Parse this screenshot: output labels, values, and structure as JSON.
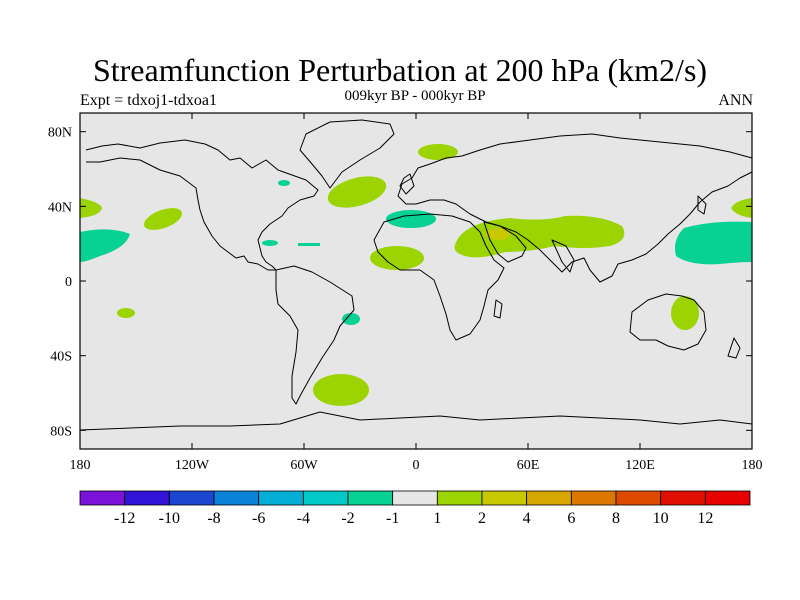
{
  "header": {
    "title": "Streamfunction Perturbation at 200 hPa (km2/s)",
    "left_label": "Expt = tdxoj1-tdxoa1",
    "center_label": "009kyr BP - 000kyr BP",
    "right_label": "ANN"
  },
  "map": {
    "projection": "cylindrical equidistant",
    "lon_range": [
      -180,
      180
    ],
    "lat_range": [
      -90,
      90
    ],
    "lon_ticks": [
      "180",
      "120W",
      "60W",
      "0",
      "60E",
      "120E",
      "180"
    ],
    "lat_ticks": [
      "80N",
      "40N",
      "0",
      "40S",
      "80S"
    ],
    "background_color": "#e6e6e6"
  },
  "colorbar": {
    "labels": [
      "-12",
      "-10",
      "-8",
      "-6",
      "-4",
      "-2",
      "-1",
      "1",
      "2",
      "4",
      "6",
      "8",
      "10",
      "12"
    ],
    "colors": [
      "#7a12d8",
      "#3214d6",
      "#1a46d2",
      "#0a82d8",
      "#05aed6",
      "#03c8c8",
      "#07d294",
      "#e6e6e6",
      "#9bd400",
      "#c8c800",
      "#d8a600",
      "#dc7800",
      "#de4a00",
      "#e00e00",
      "#e60000"
    ]
  }
}
